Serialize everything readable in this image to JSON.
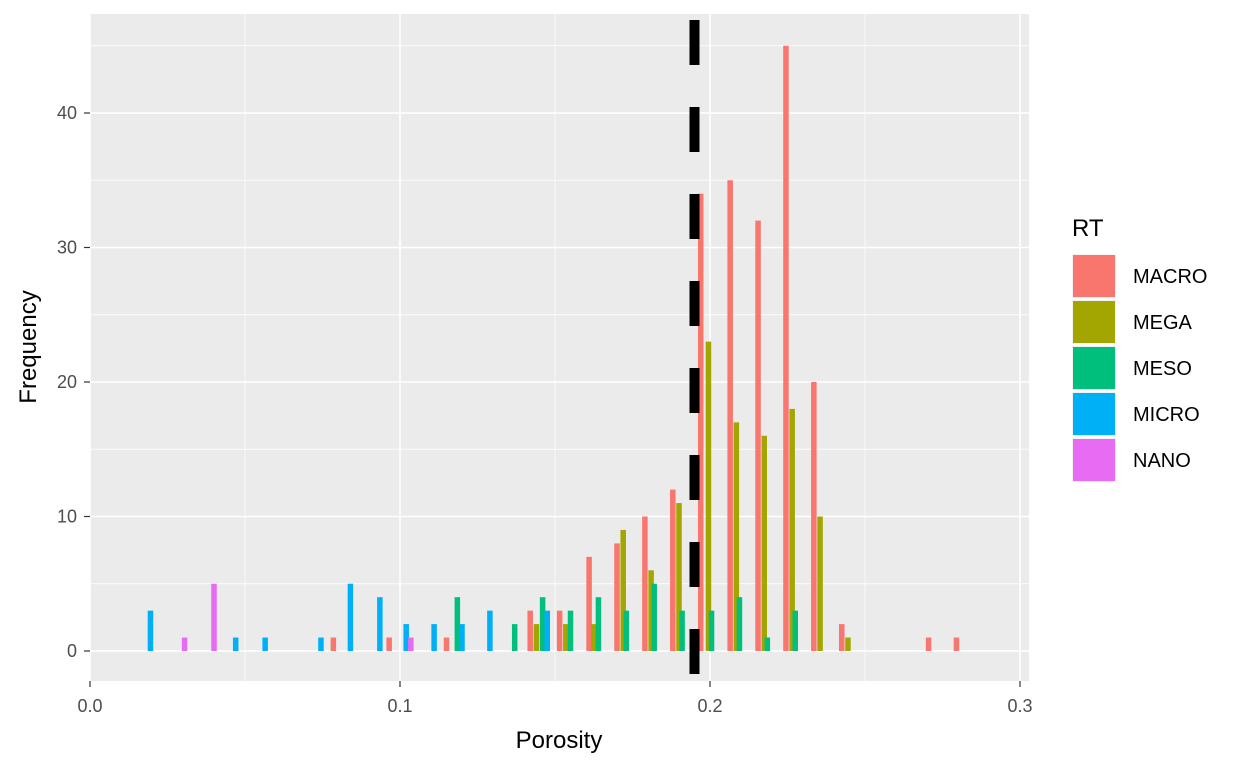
{
  "chart_data": {
    "type": "bar",
    "xlabel": "Porosity",
    "ylabel": "Frequency",
    "xlim": [
      0.0,
      0.3
    ],
    "ylim": [
      -2.25,
      47.25
    ],
    "xticks": [
      {
        "value": 0.0,
        "label": "0.0"
      },
      {
        "value": 0.1,
        "label": "0.1"
      },
      {
        "value": 0.2,
        "label": "0.2"
      },
      {
        "value": 0.3,
        "label": "0.3"
      }
    ],
    "yticks": [
      {
        "value": 0,
        "label": "0"
      },
      {
        "value": 10,
        "label": "10"
      },
      {
        "value": 20,
        "label": "20"
      },
      {
        "value": 30,
        "label": "30"
      },
      {
        "value": 40,
        "label": "40"
      }
    ],
    "grid": true,
    "legend_title": "RT",
    "legend_position": "right",
    "vline": {
      "x": 0.195,
      "style": "dashed",
      "color": "#000000"
    },
    "series": [
      {
        "name": "MACRO",
        "color": "#F8766D",
        "points": [
          {
            "x": 0.0785,
            "y": 1
          },
          {
            "x": 0.0965,
            "y": 1
          },
          {
            "x": 0.115,
            "y": 1
          },
          {
            "x": 0.142,
            "y": 3
          },
          {
            "x": 0.1515,
            "y": 3
          },
          {
            "x": 0.161,
            "y": 7
          },
          {
            "x": 0.17,
            "y": 8
          },
          {
            "x": 0.179,
            "y": 10
          },
          {
            "x": 0.188,
            "y": 12
          },
          {
            "x": 0.197,
            "y": 34
          },
          {
            "x": 0.2065,
            "y": 35
          },
          {
            "x": 0.2155,
            "y": 32
          },
          {
            "x": 0.2245,
            "y": 45
          },
          {
            "x": 0.2335,
            "y": 20
          },
          {
            "x": 0.2425,
            "y": 2
          },
          {
            "x": 0.2705,
            "y": 1
          },
          {
            "x": 0.2795,
            "y": 1
          }
        ]
      },
      {
        "name": "MEGA",
        "color": "#A3A500",
        "points": [
          {
            "x": 0.144,
            "y": 2
          },
          {
            "x": 0.1535,
            "y": 2
          },
          {
            "x": 0.1625,
            "y": 2
          },
          {
            "x": 0.172,
            "y": 9
          },
          {
            "x": 0.181,
            "y": 6
          },
          {
            "x": 0.19,
            "y": 11
          },
          {
            "x": 0.1995,
            "y": 23
          },
          {
            "x": 0.2085,
            "y": 17
          },
          {
            "x": 0.2175,
            "y": 16
          },
          {
            "x": 0.2265,
            "y": 18
          },
          {
            "x": 0.2355,
            "y": 10
          },
          {
            "x": 0.2445,
            "y": 1
          }
        ]
      },
      {
        "name": "MESO",
        "color": "#00BF7D",
        "points": [
          {
            "x": 0.1185,
            "y": 4
          },
          {
            "x": 0.137,
            "y": 2
          },
          {
            "x": 0.146,
            "y": 4
          },
          {
            "x": 0.155,
            "y": 3
          },
          {
            "x": 0.164,
            "y": 4
          },
          {
            "x": 0.173,
            "y": 3
          },
          {
            "x": 0.182,
            "y": 5
          },
          {
            "x": 0.191,
            "y": 3
          },
          {
            "x": 0.2005,
            "y": 3
          },
          {
            "x": 0.2095,
            "y": 4
          },
          {
            "x": 0.2185,
            "y": 1
          },
          {
            "x": 0.2275,
            "y": 3
          }
        ]
      },
      {
        "name": "MICRO",
        "color": "#00B0F6",
        "points": [
          {
            "x": 0.0195,
            "y": 3
          },
          {
            "x": 0.047,
            "y": 1
          },
          {
            "x": 0.0565,
            "y": 1
          },
          {
            "x": 0.0745,
            "y": 1
          },
          {
            "x": 0.084,
            "y": 5
          },
          {
            "x": 0.0935,
            "y": 4
          },
          {
            "x": 0.102,
            "y": 2
          },
          {
            "x": 0.111,
            "y": 2
          },
          {
            "x": 0.12,
            "y": 2
          },
          {
            "x": 0.129,
            "y": 3
          },
          {
            "x": 0.1475,
            "y": 3
          }
        ]
      },
      {
        "name": "NANO",
        "color": "#E76BF3",
        "points": [
          {
            "x": 0.0305,
            "y": 1
          },
          {
            "x": 0.04,
            "y": 5
          },
          {
            "x": 0.1035,
            "y": 1
          }
        ]
      }
    ]
  }
}
